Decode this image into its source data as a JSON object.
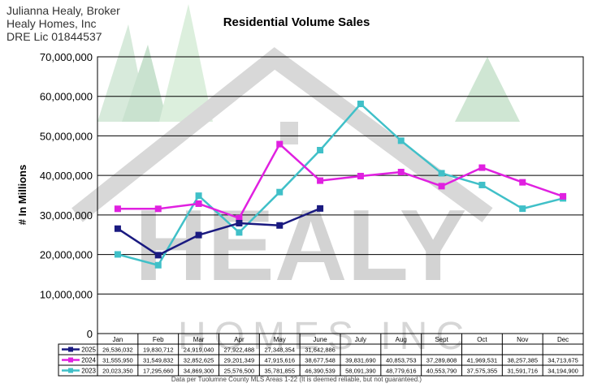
{
  "header": {
    "broker_lines": [
      "Julianna Healy, Broker",
      "Healy Homes, Inc",
      "DRE Lic 01844537"
    ]
  },
  "watermark": {
    "lines": [
      "HEALY",
      "HOMES INC"
    ]
  },
  "footer": {
    "note": "Data per Tuolumne County MLS Areas 1-22 (It is deemed reliable, but not guaranteed.)"
  },
  "chart_data": {
    "type": "line",
    "title": "Residential Volume Sales",
    "xlabel": "",
    "ylabel": "# In Millions",
    "ylim": [
      0,
      70000000
    ],
    "yticks": [
      0,
      10000000,
      20000000,
      30000000,
      40000000,
      50000000,
      60000000,
      70000000
    ],
    "ytick_labels": [
      "0",
      "10,000,000",
      "20,000,000",
      "30,000,000",
      "40,000,000",
      "50,000,000",
      "60,000,000",
      "70,000,000"
    ],
    "grid": true,
    "legend": "data-table-below",
    "categories": [
      "Jan",
      "Feb",
      "Mar",
      "Apr",
      "May",
      "June",
      "July",
      "Aug",
      "Sept",
      "Oct",
      "Nov",
      "Dec"
    ],
    "series": [
      {
        "name": "2025",
        "color": "#1a1a80",
        "values": [
          26536032,
          19830712,
          24919040,
          27922488,
          27348354,
          31642886,
          null,
          null,
          null,
          null,
          null,
          null
        ],
        "labels": [
          "26,536,032",
          "19,830,712",
          "24,919,040",
          "27,922,488",
          "27,348,354",
          "31,642,886",
          "",
          "",
          "",
          "",
          "",
          ""
        ]
      },
      {
        "name": "2024",
        "color": "#e020e0",
        "values": [
          31555950,
          31549832,
          32852625,
          29201349,
          47915616,
          38677548,
          39831690,
          40853753,
          37289808,
          41969531,
          38257385,
          34713675
        ],
        "labels": [
          "31,555,950",
          "31,549,832",
          "32,852,625",
          "29,201,349",
          "47,915,616",
          "38,677,548",
          "39,831,690",
          "40,853,753",
          "37,289,808",
          "41,969,531",
          "38,257,385",
          "34,713,675"
        ]
      },
      {
        "name": "2023",
        "color": "#40c0c8",
        "values": [
          20023350,
          17295660,
          34869300,
          25576500,
          35781855,
          46390539,
          58091390,
          48779616,
          40553790,
          37575355,
          31591716,
          34194900
        ],
        "labels": [
          "20,023,350",
          "17,295,660",
          "34,869,300",
          "25,576,500",
          "35,781,855",
          "46,390,539",
          "58,091,390",
          "48,779,616",
          "40,553,790",
          "37,575,355",
          "31,591,716",
          "34,194,900"
        ]
      }
    ]
  }
}
